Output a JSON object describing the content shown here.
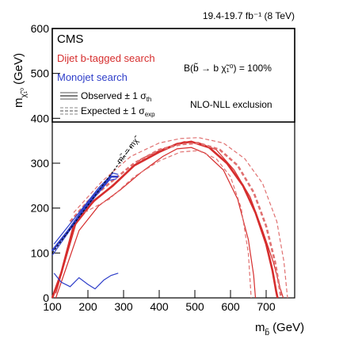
{
  "chart_data": {
    "type": "line",
    "title": "",
    "lumi_label": "19.4-19.7 fb⁻¹ (8 TeV)",
    "experiment": "CMS",
    "xlabel": "m",
    "xlabel_sub": "b̃",
    "xlabel_unit": "(GeV)",
    "ylabel": "m",
    "ylabel_sub": "χ̃₁⁰",
    "ylabel_unit": "(GeV)",
    "xlim": [
      100,
      780
    ],
    "ylim": [
      0,
      600
    ],
    "x_ticks": [
      "100",
      "200",
      "300",
      "400",
      "500",
      "600",
      "700"
    ],
    "y_ticks": [
      "0",
      "100",
      "200",
      "300",
      "400",
      "500",
      "600"
    ],
    "legend": {
      "placement": "top",
      "searches": [
        {
          "label": "Dijet b-tagged search",
          "color": "#d62d2d"
        },
        {
          "label": "Monojet search",
          "color": "#2e3ec9"
        }
      ],
      "line_styles": [
        {
          "label": "Observed ± 1 σ",
          "sub": "th",
          "style": "solid"
        },
        {
          "label": "Expected ± 1 σ",
          "sub": "exp",
          "style": "dashed"
        }
      ],
      "process": "B(b̃ → b χ̃₁⁰) = 100%",
      "exclusion": "NLO-NLL exclusion"
    },
    "diagonal_label": "mₙ̃ = mχ̃",
    "diagonal_text": "m",
    "series": [
      {
        "name": "Dijet b-tagged search",
        "kind": "observed",
        "color": "#d62d2d",
        "x": [
          100,
          125,
          160,
          215,
          270,
          330,
          400,
          450,
          490,
          540,
          590,
          635,
          670,
          700,
          718,
          728,
          732
        ],
        "y": [
          0,
          55,
          160,
          215,
          250,
          295,
          325,
          343,
          348,
          335,
          300,
          250,
          190,
          120,
          60,
          15,
          0
        ]
      },
      {
        "name": "Dijet b-tagged search",
        "kind": "observed_plus",
        "color": "#d62d2d",
        "x": [
          110,
          170,
          230,
          290,
          350,
          420,
          470,
          510,
          560,
          610,
          655,
          690,
          720,
          740,
          748
        ],
        "y": [
          10,
          175,
          225,
          265,
          310,
          335,
          348,
          346,
          330,
          285,
          225,
          150,
          80,
          20,
          0
        ]
      },
      {
        "name": "Dijet b-tagged search",
        "kind": "observed_minus",
        "color": "#d62d2d",
        "x": [
          110,
          175,
          230,
          290,
          350,
          410,
          450,
          490,
          530,
          580,
          620,
          650,
          665,
          670
        ],
        "y": [
          0,
          150,
          205,
          240,
          280,
          315,
          332,
          335,
          322,
          285,
          220,
          130,
          50,
          0
        ]
      },
      {
        "name": "Dijet b-tagged search",
        "kind": "expected",
        "color": "#e07070",
        "x": [
          150,
          200,
          260,
          330,
          400,
          460,
          510,
          570,
          620,
          665,
          700,
          725,
          738,
          742
        ],
        "y": [
          170,
          215,
          255,
          300,
          330,
          342,
          345,
          330,
          295,
          235,
          160,
          80,
          20,
          0
        ]
      },
      {
        "name": "Dijet b-tagged search",
        "kind": "expected_plus",
        "color": "#e07070",
        "x": [
          160,
          240,
          320,
          400,
          460,
          510,
          580,
          640,
          690,
          730,
          750,
          758,
          760
        ],
        "y": [
          190,
          260,
          315,
          345,
          355,
          357,
          345,
          310,
          255,
          170,
          80,
          15,
          0
        ]
      },
      {
        "name": "Dijet b-tagged search",
        "kind": "expected_minus",
        "color": "#e07070",
        "x": [
          190,
          260,
          330,
          400,
          460,
          510,
          560,
          600,
          630,
          650,
          658
        ],
        "y": [
          190,
          220,
          270,
          305,
          325,
          328,
          310,
          270,
          200,
          100,
          0
        ]
      },
      {
        "name": "Monojet search",
        "kind": "observed",
        "color": "#2e3ec9",
        "x": [
          100,
          145,
          185,
          225,
          265,
          285
        ],
        "y": [
          105,
          150,
          195,
          235,
          270,
          270
        ]
      },
      {
        "name": "Monojet search",
        "kind": "observed_plus",
        "color": "#2e3ec9",
        "x": [
          100,
          140,
          180,
          220,
          260,
          280
        ],
        "y": [
          95,
          140,
          185,
          225,
          262,
          265
        ]
      },
      {
        "name": "Monojet search",
        "kind": "observed_minus",
        "color": "#2e3ec9",
        "x": [
          105,
          150,
          190,
          230,
          270,
          285
        ],
        "y": [
          120,
          165,
          205,
          245,
          278,
          275
        ]
      },
      {
        "name": "Monojet search",
        "kind": "observed_lower_band",
        "color": "#2e3ec9",
        "x": [
          105,
          125,
          150,
          175,
          200,
          220,
          245,
          265,
          285
        ],
        "y": [
          55,
          35,
          25,
          45,
          30,
          20,
          40,
          50,
          55
        ]
      }
    ]
  }
}
